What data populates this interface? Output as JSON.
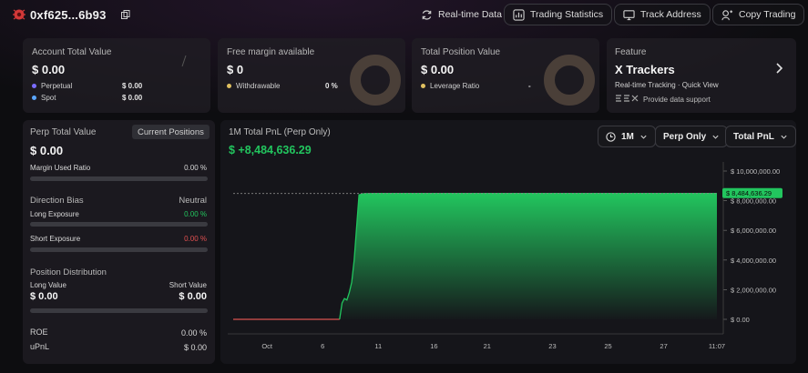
{
  "header": {
    "address": "0xf625...6b93",
    "buttons": [
      {
        "label": "Real-time Data",
        "icon": "refresh-icon"
      },
      {
        "label": "Trading Statistics",
        "icon": "chart-icon"
      },
      {
        "label": "Track Address",
        "icon": "monitor-icon"
      },
      {
        "label": "Copy Trading",
        "icon": "copy-trade-icon"
      }
    ]
  },
  "cards": {
    "account": {
      "title": "Account Total Value",
      "value": "$ 0.00",
      "rows": [
        {
          "label": "Perpetual",
          "value": "$ 0.00",
          "color": "#7b6cff"
        },
        {
          "label": "Spot",
          "value": "$ 0.00",
          "color": "#5aa6ff"
        }
      ]
    },
    "margin": {
      "title": "Free margin available",
      "value": "$ 0",
      "row_label": "Withdrawable",
      "row_value": "0 %",
      "dot_color": "#e0c060"
    },
    "position": {
      "title": "Total Position Value",
      "value": "$ 0.00",
      "row_label": "Leverage Ratio",
      "row_value": "-",
      "dot_color": "#e0c060"
    },
    "feature": {
      "title": "Feature",
      "name": "X Trackers",
      "desc": "Real-time Tracking · Quick View",
      "support": "Provide data support"
    }
  },
  "left_panel": {
    "title": "Perp Total Value",
    "tab": "Current Positions",
    "value": "$ 0.00",
    "margin_used_label": "Margin Used Ratio",
    "margin_used_value": "0.00 %",
    "direction_label": "Direction Bias",
    "direction_value": "Neutral",
    "long_label": "Long Exposure",
    "long_value": "0.00 %",
    "short_label": "Short Exposure",
    "short_value": "0.00 %",
    "distribution_label": "Position Distribution",
    "long_value_label": "Long Value",
    "short_value_label": "Short Value",
    "long_value_amt": "$ 0.00",
    "short_value_amt": "$ 0.00",
    "roe_label": "ROE",
    "roe_value": "0.00 %",
    "upnl_label": "uPnL",
    "upnl_value": "$ 0.00",
    "colors": {
      "long": "#22c55e",
      "short": "#e05050"
    }
  },
  "chart_panel": {
    "title": "1M Total PnL (Perp Only)",
    "value": "$ +8,484,636.29",
    "period": "1M",
    "filter": "Perp Only",
    "metric": "Total PnL",
    "end_label": "$ 8,484,636.29"
  },
  "chart_data": {
    "type": "area",
    "title": "1M Total PnL (Perp Only)",
    "x_ticks": [
      "Oct",
      "6",
      "11",
      "16",
      "21",
      "23",
      "25",
      "27",
      "11:07"
    ],
    "y_ticks": [
      "$ 10,000,000.00",
      "$ 8,000,000.00",
      "$ 6,000,000.00",
      "$ 4,000,000.00",
      "$ 2,000,000.00",
      "$ 0.00"
    ],
    "ylim": [
      0,
      10000000
    ],
    "x": [
      0,
      0.18,
      0.19,
      0.2,
      0.21,
      0.22,
      0.225,
      0.23,
      0.235,
      0.24,
      0.245,
      0.25,
      0.26,
      0.27,
      0.28,
      0.29,
      0.3,
      1.0
    ],
    "values": [
      0,
      0,
      0,
      0,
      0,
      0,
      1100000,
      1400000,
      1300000,
      1800000,
      2500000,
      4000000,
      8400000,
      8470000,
      8480000,
      8484636.29,
      8484636.29,
      8484636.29
    ],
    "negative_until": 0.22,
    "colors": {
      "positive": "#22c55e",
      "negative": "#d9534f"
    }
  }
}
